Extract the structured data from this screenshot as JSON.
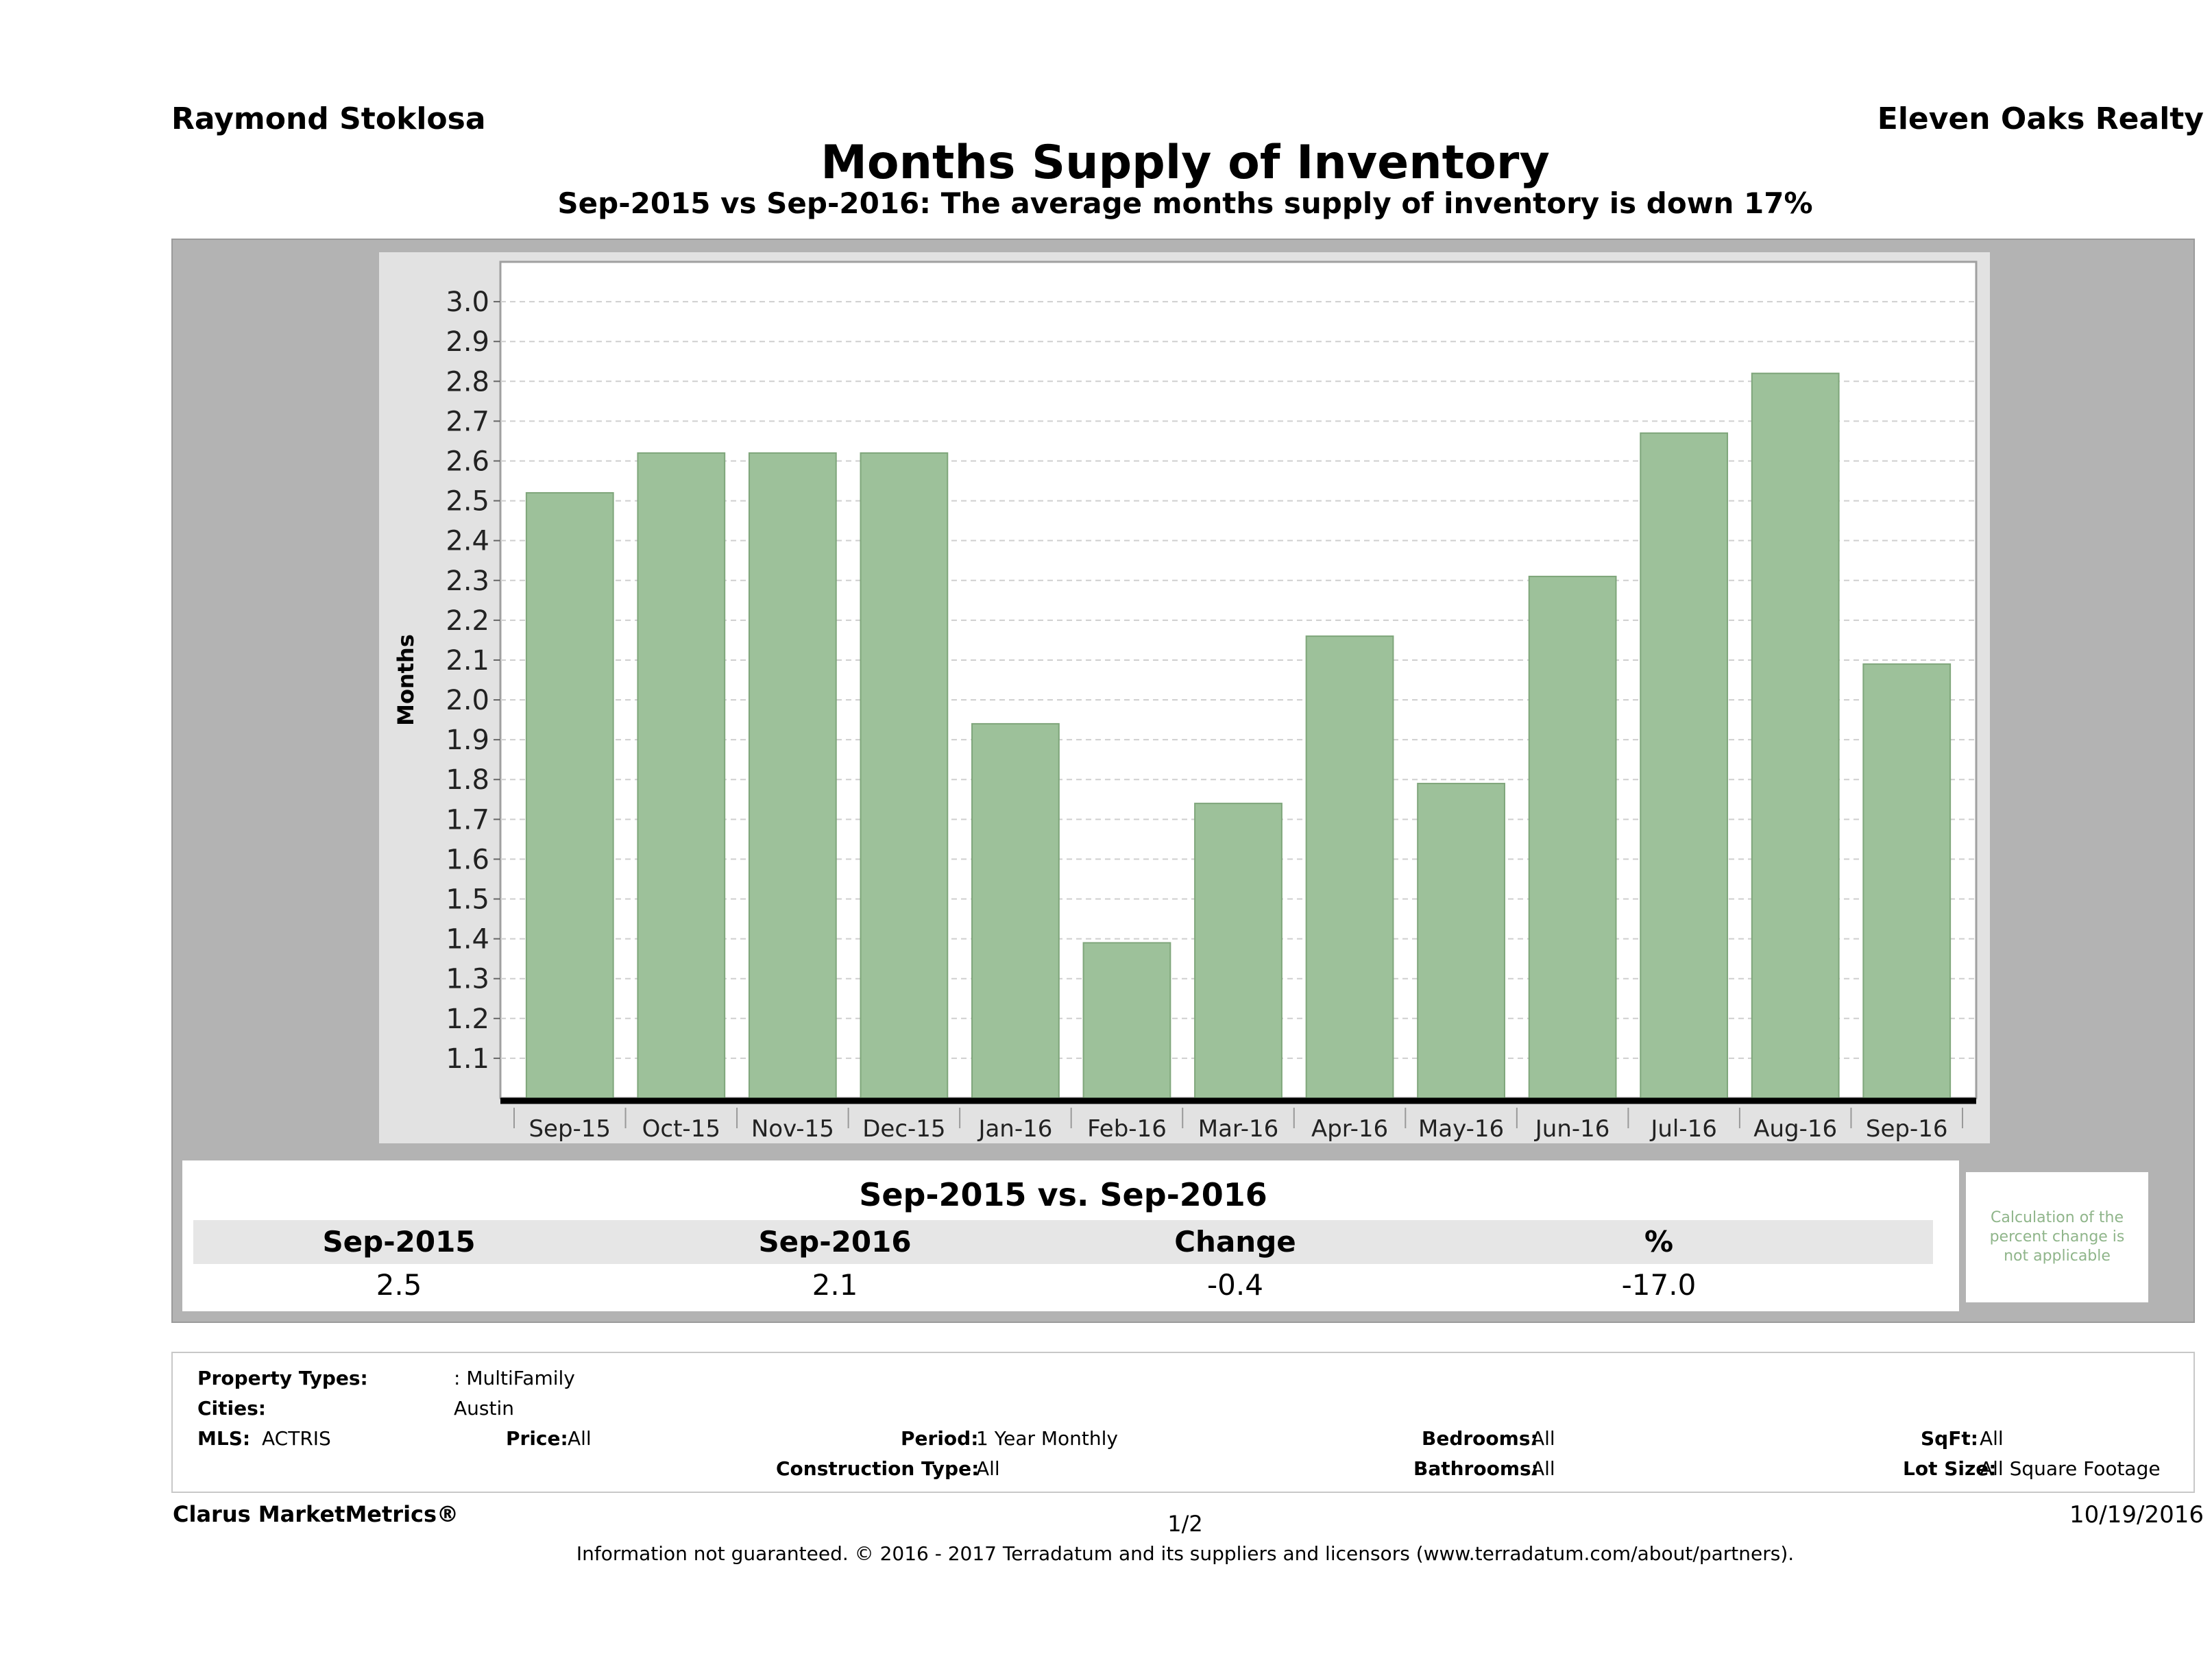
{
  "header": {
    "agent": "Raymond Stoklosa",
    "brokerage": "Eleven Oaks Realty",
    "title": "Months Supply of Inventory",
    "subtitle": "Sep-2015 vs Sep-2016: The average months supply of inventory is down 17%"
  },
  "chart_data": {
    "type": "bar",
    "title": "Months Supply of Inventory",
    "ylabel": "Months",
    "xlabel": "",
    "ylim": [
      1.0,
      3.1
    ],
    "yticks": [
      "1.1",
      "1.2",
      "1.3",
      "1.4",
      "1.5",
      "1.6",
      "1.7",
      "1.8",
      "1.9",
      "2.0",
      "2.1",
      "2.2",
      "2.3",
      "2.4",
      "2.5",
      "2.6",
      "2.7",
      "2.8",
      "2.9",
      "3.0"
    ],
    "categories": [
      "Sep-15",
      "Oct-15",
      "Nov-15",
      "Dec-15",
      "Jan-16",
      "Feb-16",
      "Mar-16",
      "Apr-16",
      "May-16",
      "Jun-16",
      "Jul-16",
      "Aug-16",
      "Sep-16"
    ],
    "values": [
      2.52,
      2.62,
      2.62,
      2.62,
      1.94,
      1.39,
      1.74,
      2.16,
      1.79,
      2.31,
      2.67,
      2.82,
      2.09
    ],
    "bar_color": "#9dc19a",
    "grid": true
  },
  "summary": {
    "title": "Sep-2015 vs. Sep-2016",
    "headers": [
      "Sep-2015",
      "Sep-2016",
      "Change",
      "%"
    ],
    "values": [
      "2.5",
      "2.1",
      "-0.4",
      "-17.0"
    ],
    "note": "Calculation of the percent change is not applicable"
  },
  "criteria": {
    "property_types_label": "Property Types:",
    "property_types_value": ": MultiFamily",
    "cities_label": "Cities:",
    "cities_value": "Austin",
    "mls_label": "MLS:",
    "mls_value": "ACTRIS",
    "price_label": "Price:",
    "price_value": "All",
    "period_label": "Period:",
    "period_value": "1 Year Monthly",
    "bedrooms_label": "Bedrooms:",
    "bedrooms_value": "All",
    "sqft_label": "SqFt:",
    "sqft_value": "All",
    "construction_label": "Construction Type:",
    "construction_value": "All",
    "bathrooms_label": "Bathrooms:",
    "bathrooms_value": "All",
    "lot_label": "Lot Size:",
    "lot_value": "All Square Footage"
  },
  "footer": {
    "brand": "Clarus MarketMetrics®",
    "page": "1/2",
    "date": "10/19/2016",
    "disclaimer": "Information not guaranteed. © 2016 - 2017 Terradatum and its suppliers and licensors (www.terradatum.com/about/partners)."
  }
}
